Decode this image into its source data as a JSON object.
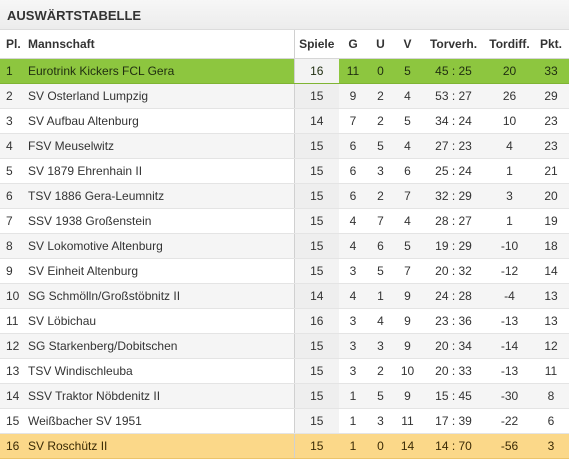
{
  "title": "AUSWÄRTSTABELLE",
  "headers": {
    "pl": "Pl.",
    "team": "Mannschaft",
    "games": "Spiele",
    "won": "G",
    "draw": "U",
    "lost": "V",
    "goals": "Torverh.",
    "diff": "Tordiff.",
    "pts": "Pkt."
  },
  "highlight_colors": {
    "leader": "#8dc63f",
    "last": "#fbd889"
  },
  "rows": [
    {
      "pl": "1",
      "team": "Eurotrink Kickers FCL Gera",
      "games": "16",
      "won": "11",
      "draw": "0",
      "lost": "5",
      "goals": "45 : 25",
      "diff": "20",
      "pts": "33"
    },
    {
      "pl": "2",
      "team": "SV Osterland Lumpzig",
      "games": "15",
      "won": "9",
      "draw": "2",
      "lost": "4",
      "goals": "53 : 27",
      "diff": "26",
      "pts": "29"
    },
    {
      "pl": "3",
      "team": "SV Aufbau Altenburg",
      "games": "14",
      "won": "7",
      "draw": "2",
      "lost": "5",
      "goals": "34 : 24",
      "diff": "10",
      "pts": "23"
    },
    {
      "pl": "4",
      "team": "FSV Meuselwitz",
      "games": "15",
      "won": "6",
      "draw": "5",
      "lost": "4",
      "goals": "27 : 23",
      "diff": "4",
      "pts": "23"
    },
    {
      "pl": "5",
      "team": "SV 1879 Ehrenhain II",
      "games": "15",
      "won": "6",
      "draw": "3",
      "lost": "6",
      "goals": "25 : 24",
      "diff": "1",
      "pts": "21"
    },
    {
      "pl": "6",
      "team": "TSV 1886 Gera-Leumnitz",
      "games": "15",
      "won": "6",
      "draw": "2",
      "lost": "7",
      "goals": "32 : 29",
      "diff": "3",
      "pts": "20"
    },
    {
      "pl": "7",
      "team": "SSV 1938 Großenstein",
      "games": "15",
      "won": "4",
      "draw": "7",
      "lost": "4",
      "goals": "28 : 27",
      "diff": "1",
      "pts": "19"
    },
    {
      "pl": "8",
      "team": "SV Lokomotive Altenburg",
      "games": "15",
      "won": "4",
      "draw": "6",
      "lost": "5",
      "goals": "19 : 29",
      "diff": "-10",
      "pts": "18"
    },
    {
      "pl": "9",
      "team": "SV Einheit Altenburg",
      "games": "15",
      "won": "3",
      "draw": "5",
      "lost": "7",
      "goals": "20 : 32",
      "diff": "-12",
      "pts": "14"
    },
    {
      "pl": "10",
      "team": "SG Schmölln/Großstöbnitz II",
      "games": "14",
      "won": "4",
      "draw": "1",
      "lost": "9",
      "goals": "24 : 28",
      "diff": "-4",
      "pts": "13"
    },
    {
      "pl": "11",
      "team": "SV Löbichau",
      "games": "16",
      "won": "3",
      "draw": "4",
      "lost": "9",
      "goals": "23 : 36",
      "diff": "-13",
      "pts": "13"
    },
    {
      "pl": "12",
      "team": "SG Starkenberg/Dobitschen",
      "games": "15",
      "won": "3",
      "draw": "3",
      "lost": "9",
      "goals": "20 : 34",
      "diff": "-14",
      "pts": "12"
    },
    {
      "pl": "13",
      "team": "TSV Windischleuba",
      "games": "15",
      "won": "3",
      "draw": "2",
      "lost": "10",
      "goals": "20 : 33",
      "diff": "-13",
      "pts": "11"
    },
    {
      "pl": "14",
      "team": "SSV Traktor Nöbdenitz II",
      "games": "15",
      "won": "1",
      "draw": "5",
      "lost": "9",
      "goals": "15 : 45",
      "diff": "-30",
      "pts": "8"
    },
    {
      "pl": "15",
      "team": "Weißbacher SV 1951",
      "games": "15",
      "won": "1",
      "draw": "3",
      "lost": "11",
      "goals": "17 : 39",
      "diff": "-22",
      "pts": "6"
    },
    {
      "pl": "16",
      "team": "SV Roschütz II",
      "games": "15",
      "won": "1",
      "draw": "0",
      "lost": "14",
      "goals": "14 : 70",
      "diff": "-56",
      "pts": "3"
    }
  ]
}
